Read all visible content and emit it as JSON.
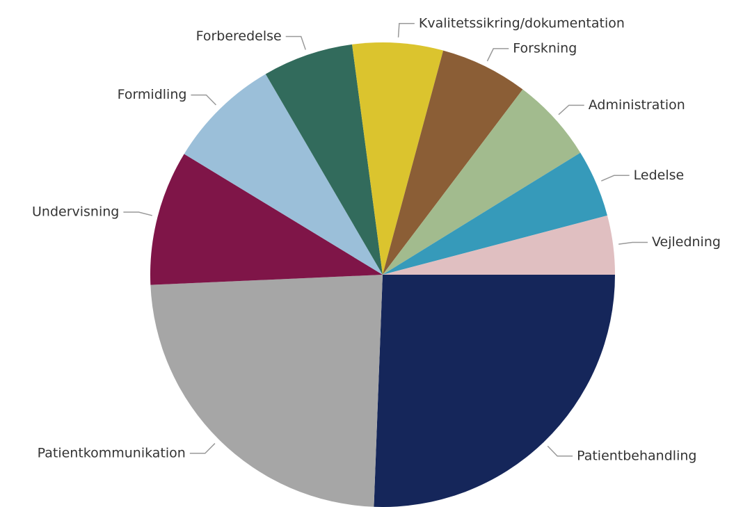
{
  "chart_data": {
    "type": "pie",
    "categories": [
      "Patientbehandling",
      "Patientkommunikation",
      "Undervisning",
      "Formidling",
      "Forberedelse",
      "Kvalitetssikring/dokumentation",
      "Forskning",
      "Administration",
      "Ledelse",
      "Vejledning"
    ],
    "values": [
      25.6,
      23.7,
      9.4,
      7.9,
      6.3,
      6.3,
      6.1,
      5.9,
      4.7,
      4.1
    ],
    "colors": [
      "#15265a",
      "#a6a6a6",
      "#7f1548",
      "#9bbfd9",
      "#326b5c",
      "#dbc42e",
      "#8b5e36",
      "#a2bb8e",
      "#369aba",
      "#e0bfc1"
    ]
  }
}
